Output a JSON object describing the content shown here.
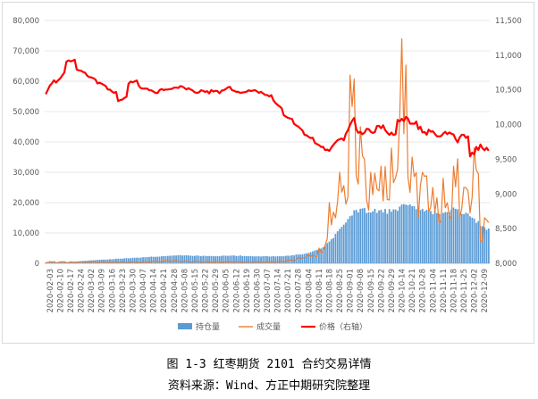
{
  "caption": {
    "title": "图 1-3  红枣期货 2101 合约交易详情",
    "source": "资料来源：Wind、方正中期研究院整理"
  },
  "chart_data": {
    "type": "bar",
    "left_axis": {
      "min": 0,
      "max": 80000,
      "ticks": [
        0,
        10000,
        20000,
        30000,
        40000,
        50000,
        60000,
        70000,
        80000
      ],
      "tick_labels": [
        "0",
        "10,000",
        "20,000",
        "30,000",
        "40,000",
        "50,000",
        "60,000",
        "70,000",
        "80,000"
      ]
    },
    "right_axis": {
      "min": 8000,
      "max": 11500,
      "ticks": [
        8000,
        8500,
        9000,
        9500,
        10000,
        10500,
        11000,
        11500
      ],
      "tick_labels": [
        "8,000",
        "8,500",
        "9,000",
        "9,500",
        "10,000",
        "10,500",
        "11,000",
        "11,500"
      ]
    },
    "x_tick_labels": [
      "2020-02-03",
      "2020-02-10",
      "2020-02-17",
      "2020-02-24",
      "2020-03-02",
      "2020-03-09",
      "2020-03-16",
      "2020-03-23",
      "2020-03-30",
      "2020-04-07",
      "2020-04-14",
      "2020-04-21",
      "2020-04-28",
      "2020-05-08",
      "2020-05-15",
      "2020-05-22",
      "2020-05-29",
      "2020-06-05",
      "2020-06-12",
      "2020-06-19",
      "2020-06-30",
      "2020-07-07",
      "2020-07-14",
      "2020-07-21",
      "2020-07-28",
      "2020-08-04",
      "2020-08-11",
      "2020-08-18",
      "2020-08-25",
      "2020-09-01",
      "2020-09-08",
      "2020-09-15",
      "2020-09-22",
      "2020-09-29",
      "2020-10-14",
      "2020-10-21",
      "2020-10-28",
      "2020-11-04",
      "2020-11-11",
      "2020-11-18",
      "2020-11-25",
      "2020-12-02",
      "2020-12-09"
    ],
    "segments": [
      {
        "open": [
          200,
          500
        ],
        "volume": [
          200,
          600
        ],
        "price": [
          10450,
          10700
        ]
      },
      {
        "open": [
          300,
          500
        ],
        "volume": [
          200,
          500
        ],
        "price": [
          10600,
          10800
        ]
      },
      {
        "open": [
          400,
          600
        ],
        "volume": [
          200,
          500
        ],
        "price": [
          10900,
          10950
        ]
      },
      {
        "open": [
          600,
          900
        ],
        "volume": [
          300,
          500
        ],
        "price": [
          10800,
          10750
        ]
      },
      {
        "open": [
          900,
          1100
        ],
        "volume": [
          300,
          600
        ],
        "price": [
          10700,
          10650
        ]
      },
      {
        "open": [
          1100,
          1300
        ],
        "volume": [
          300,
          600
        ],
        "price": [
          10600,
          10550
        ]
      },
      {
        "open": [
          1300,
          1500
        ],
        "volume": [
          300,
          500
        ],
        "price": [
          10500,
          10450
        ]
      },
      {
        "open": [
          1500,
          1700
        ],
        "volume": [
          300,
          500
        ],
        "price": [
          10350,
          10400
        ]
      },
      {
        "open": [
          1700,
          1900
        ],
        "volume": [
          300,
          600
        ],
        "price": [
          10600,
          10650
        ]
      },
      {
        "open": [
          1900,
          2100
        ],
        "volume": [
          300,
          600
        ],
        "price": [
          10550,
          10500
        ]
      },
      {
        "open": [
          2100,
          2300
        ],
        "volume": [
          400,
          700
        ],
        "price": [
          10500,
          10450
        ]
      },
      {
        "open": [
          2300,
          2500
        ],
        "volume": [
          400,
          800
        ],
        "price": [
          10500,
          10500
        ]
      },
      {
        "open": [
          2500,
          2600
        ],
        "volume": [
          500,
          900
        ],
        "price": [
          10500,
          10550
        ]
      },
      {
        "open": [
          2600,
          2600
        ],
        "volume": [
          400,
          800
        ],
        "price": [
          10550,
          10500
        ]
      },
      {
        "open": [
          2500,
          2500
        ],
        "volume": [
          400,
          800
        ],
        "price": [
          10500,
          10450
        ]
      },
      {
        "open": [
          2400,
          2400
        ],
        "volume": [
          300,
          600
        ],
        "price": [
          10500,
          10450
        ]
      },
      {
        "open": [
          2400,
          2400
        ],
        "volume": [
          300,
          600
        ],
        "price": [
          10500,
          10450
        ]
      },
      {
        "open": [
          2500,
          2500
        ],
        "volume": [
          300,
          600
        ],
        "price": [
          10500,
          10550
        ]
      },
      {
        "open": [
          2500,
          2500
        ],
        "volume": [
          300,
          600
        ],
        "price": [
          10500,
          10450
        ]
      },
      {
        "open": [
          2400,
          2400
        ],
        "volume": [
          300,
          600
        ],
        "price": [
          10450,
          10500
        ]
      },
      {
        "open": [
          2300,
          2300
        ],
        "volume": [
          300,
          600
        ],
        "price": [
          10500,
          10450
        ]
      },
      {
        "open": [
          2300,
          2300
        ],
        "volume": [
          300,
          600
        ],
        "price": [
          10450,
          10400
        ]
      },
      {
        "open": [
          2300,
          2400
        ],
        "volume": [
          400,
          700
        ],
        "price": [
          10350,
          10200
        ]
      },
      {
        "open": [
          2400,
          2700
        ],
        "volume": [
          500,
          1200
        ],
        "price": [
          10150,
          10050
        ]
      },
      {
        "open": [
          2700,
          3200
        ],
        "volume": [
          800,
          2000
        ],
        "price": [
          10000,
          9900
        ]
      },
      {
        "open": [
          3200,
          4200
        ],
        "volume": [
          1500,
          3000
        ],
        "price": [
          9850,
          9800
        ]
      },
      {
        "open": [
          4200,
          5600
        ],
        "volume": [
          2000,
          5000
        ],
        "price": [
          9750,
          9650
        ]
      },
      {
        "open": [
          6000,
          9000
        ],
        "volume": [
          6000,
          20000
        ],
        "price": [
          9600,
          9700
        ]
      },
      {
        "open": [
          10000,
          14000
        ],
        "volume": [
          15000,
          30000
        ],
        "price": [
          9750,
          9800
        ]
      },
      {
        "open": [
          14000,
          18000
        ],
        "volume": [
          20000,
          62000
        ],
        "price": [
          9850,
          10200
        ]
      },
      {
        "open": [
          17000,
          18000
        ],
        "volume": [
          25000,
          45000
        ],
        "price": [
          9900,
          9850
        ]
      },
      {
        "open": [
          16500,
          17500
        ],
        "volume": [
          20000,
          30000
        ],
        "price": [
          9950,
          9900
        ]
      },
      {
        "open": [
          17000,
          17500
        ],
        "volume": [
          20000,
          32000
        ],
        "price": [
          10000,
          9950
        ]
      },
      {
        "open": [
          17000,
          18000
        ],
        "volume": [
          25000,
          38000
        ],
        "price": [
          9900,
          9850
        ]
      },
      {
        "open": [
          18000,
          20000
        ],
        "volume": [
          30000,
          74000
        ],
        "price": [
          10050,
          10100
        ]
      },
      {
        "open": [
          19000,
          18000
        ],
        "volume": [
          25000,
          35000
        ],
        "price": [
          10050,
          10000
        ]
      },
      {
        "open": [
          18000,
          17000
        ],
        "volume": [
          20000,
          30000
        ],
        "price": [
          9950,
          9850
        ]
      },
      {
        "open": [
          17000,
          16500
        ],
        "volume": [
          15000,
          25000
        ],
        "price": [
          9900,
          9850
        ]
      },
      {
        "open": [
          16500,
          17500
        ],
        "volume": [
          15000,
          28000
        ],
        "price": [
          9850,
          9900
        ]
      },
      {
        "open": [
          17500,
          18500
        ],
        "volume": [
          15000,
          32000
        ],
        "price": [
          9900,
          9700
        ]
      },
      {
        "open": [
          17000,
          16000
        ],
        "volume": [
          15000,
          25000
        ],
        "price": [
          9850,
          9800
        ]
      },
      {
        "open": [
          15000,
          13000
        ],
        "volume": [
          15000,
          38000
        ],
        "price": [
          9550,
          9700
        ]
      },
      {
        "open": [
          12000,
          11000
        ],
        "volume": [
          8000,
          15000
        ],
        "price": [
          9700,
          9600
        ]
      }
    ],
    "legend": [
      {
        "label": "持仓量",
        "style": "bar",
        "color": "#5b9bd5"
      },
      {
        "label": "成交量",
        "style": "line",
        "color": "#ed7d31"
      },
      {
        "label": "价格（右轴）",
        "style": "line",
        "color": "#ff0000"
      }
    ],
    "legend_position": "bottom",
    "grid": true
  }
}
